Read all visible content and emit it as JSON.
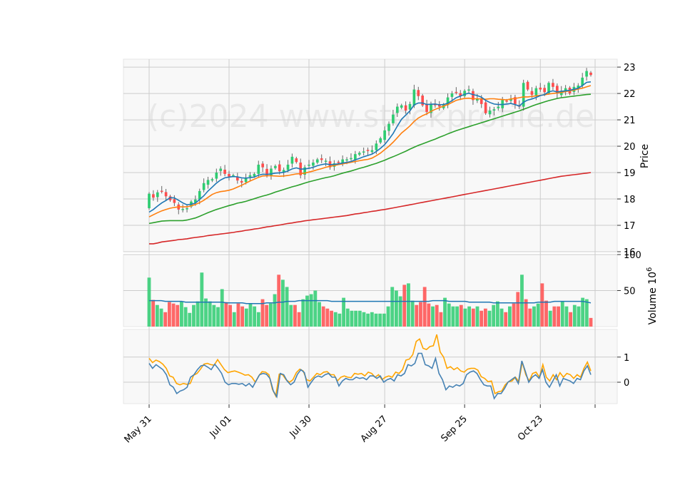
{
  "chart_data": [
    {
      "type": "candlestick",
      "panel": "price",
      "ylabel": "Price",
      "ylim": [
        16,
        23.3
      ],
      "y_ticks": [
        "16",
        "17",
        "18",
        "19",
        "20",
        "21",
        "22",
        "23"
      ],
      "x_ticks": [
        "May 31",
        "Jul 01",
        "Jul 30",
        "Aug 27",
        "Sep 25",
        "Oct 23"
      ],
      "watermark": "(c)2024 www.stockprofile.de",
      "up_color": "#2ecc71",
      "down_color": "#ff4d4d",
      "close": [
        18.2,
        18.05,
        18.25,
        18.3,
        18.1,
        17.95,
        17.85,
        17.6,
        17.62,
        17.65,
        17.9,
        17.98,
        18.3,
        18.6,
        18.72,
        18.75,
        19.0,
        19.15,
        18.95,
        18.85,
        18.9,
        18.7,
        18.62,
        18.78,
        18.9,
        18.95,
        19.3,
        19.2,
        18.9,
        19.15,
        19.25,
        19.05,
        19.1,
        19.3,
        19.6,
        19.4,
        18.9,
        19.2,
        19.3,
        19.38,
        19.5,
        19.48,
        19.45,
        19.2,
        19.35,
        19.4,
        19.5,
        19.5,
        19.55,
        19.7,
        19.75,
        19.8,
        19.82,
        19.85,
        20.1,
        20.3,
        20.6,
        20.85,
        21.2,
        21.5,
        21.55,
        21.35,
        21.6,
        22.15,
        21.9,
        21.55,
        21.3,
        21.6,
        21.55,
        21.5,
        21.58,
        21.85,
        22.0,
        22.05,
        21.9,
        22.1,
        22.15,
        21.75,
        21.8,
        21.6,
        21.25,
        21.35,
        21.4,
        21.5,
        21.75,
        21.7,
        21.8,
        21.6,
        21.5,
        22.4,
        22.15,
        21.95,
        22.2,
        22.15,
        22.05,
        22.4,
        22.25,
        22.0,
        22.1,
        22.2,
        22.0,
        22.25,
        22.3,
        22.6,
        22.85,
        22.7
      ],
      "ema_fast": [
        17.5,
        17.6,
        17.73,
        17.85,
        17.94,
        18.05,
        18.04,
        17.95,
        17.85,
        17.78,
        17.8,
        17.84,
        17.98,
        18.12,
        18.3,
        18.45,
        18.6,
        18.72,
        18.8,
        18.83,
        18.85,
        18.84,
        18.8,
        18.79,
        18.81,
        18.83,
        18.9,
        18.94,
        18.93,
        18.95,
        18.98,
        18.99,
        19.01,
        19.06,
        19.14,
        19.18,
        19.13,
        19.14,
        19.16,
        19.2,
        19.26,
        19.3,
        19.33,
        19.3,
        19.31,
        19.33,
        19.36,
        19.39,
        19.42,
        19.48,
        19.54,
        19.6,
        19.65,
        19.7,
        19.8,
        19.92,
        20.06,
        20.26,
        20.48,
        20.76,
        21.02,
        21.18,
        21.34,
        21.57,
        21.64,
        21.64,
        21.58,
        21.59,
        21.6,
        21.57,
        21.58,
        21.63,
        21.73,
        21.84,
        21.9,
        21.97,
        22.01,
        21.96,
        21.92,
        21.86,
        21.74,
        21.66,
        21.6,
        21.58,
        21.58,
        21.6,
        21.62,
        21.58,
        21.52,
        21.67,
        21.75,
        21.79,
        21.85,
        21.92,
        21.96,
        22.06,
        22.1,
        22.06,
        22.08,
        22.1,
        22.12,
        22.16,
        22.2,
        22.3,
        22.42,
        22.44
      ],
      "ema_mid": [
        17.32,
        17.4,
        17.48,
        17.55,
        17.6,
        17.65,
        17.68,
        17.7,
        17.7,
        17.7,
        17.74,
        17.79,
        17.86,
        17.95,
        18.06,
        18.17,
        18.24,
        18.28,
        18.3,
        18.33,
        18.38,
        18.45,
        18.52,
        18.6,
        18.68,
        18.75,
        18.82,
        18.87,
        18.88,
        18.88,
        18.87,
        18.86,
        18.87,
        18.89,
        18.92,
        18.95,
        18.96,
        18.98,
        19.02,
        19.06,
        19.11,
        19.15,
        19.2,
        19.24,
        19.27,
        19.3,
        19.33,
        19.36,
        19.39,
        19.42,
        19.45,
        19.48,
        19.5,
        19.55,
        19.64,
        19.74,
        19.87,
        20.0,
        20.15,
        20.32,
        20.5,
        20.63,
        20.77,
        20.94,
        21.07,
        21.16,
        21.23,
        21.32,
        21.4,
        21.46,
        21.52,
        21.58,
        21.66,
        21.74,
        21.78,
        21.81,
        21.82,
        21.8,
        21.8,
        21.79,
        21.78,
        21.8,
        21.8,
        21.78,
        21.77,
        21.76,
        21.79,
        21.81,
        21.84,
        21.87,
        21.87,
        21.89,
        21.91,
        21.93,
        21.95,
        21.98,
        22.0,
        22.02,
        22.04,
        22.07,
        22.1,
        22.13,
        22.17,
        22.2,
        22.25,
        22.3
      ],
      "ema_slow": [
        17.07,
        17.1,
        17.13,
        17.16,
        17.17,
        17.18,
        17.18,
        17.18,
        17.18,
        17.2,
        17.24,
        17.28,
        17.34,
        17.41,
        17.48,
        17.54,
        17.6,
        17.65,
        17.7,
        17.75,
        17.79,
        17.84,
        17.87,
        17.91,
        17.96,
        18.01,
        18.06,
        18.11,
        18.15,
        18.2,
        18.26,
        18.31,
        18.36,
        18.41,
        18.46,
        18.5,
        18.55,
        18.6,
        18.65,
        18.69,
        18.73,
        18.77,
        18.81,
        18.84,
        18.88,
        18.93,
        18.98,
        19.02,
        19.06,
        19.11,
        19.16,
        19.2,
        19.25,
        19.3,
        19.35,
        19.41,
        19.47,
        19.54,
        19.6,
        19.67,
        19.74,
        19.81,
        19.89,
        19.96,
        20.03,
        20.09,
        20.15,
        20.21,
        20.27,
        20.34,
        20.4,
        20.47,
        20.53,
        20.59,
        20.64,
        20.69,
        20.74,
        20.79,
        20.84,
        20.89,
        20.94,
        20.99,
        21.04,
        21.09,
        21.14,
        21.19,
        21.24,
        21.29,
        21.34,
        21.4,
        21.46,
        21.52,
        21.58,
        21.63,
        21.68,
        21.73,
        21.77,
        21.81,
        21.84,
        21.86,
        21.88,
        21.9,
        21.92,
        21.94,
        21.96,
        21.97
      ],
      "sma_long": [
        16.3,
        16.3,
        16.33,
        16.37,
        16.39,
        16.41,
        16.43,
        16.46,
        16.47,
        16.49,
        16.52,
        16.54,
        16.56,
        16.58,
        16.61,
        16.63,
        16.65,
        16.67,
        16.69,
        16.71,
        16.73,
        16.76,
        16.78,
        16.81,
        16.83,
        16.86,
        16.88,
        16.91,
        16.94,
        16.96,
        16.99,
        17.01,
        17.04,
        17.07,
        17.09,
        17.12,
        17.14,
        17.17,
        17.19,
        17.21,
        17.23,
        17.25,
        17.27,
        17.29,
        17.31,
        17.33,
        17.35,
        17.37,
        17.4,
        17.43,
        17.45,
        17.48,
        17.5,
        17.53,
        17.55,
        17.58,
        17.6,
        17.63,
        17.66,
        17.69,
        17.72,
        17.75,
        17.78,
        17.81,
        17.84,
        17.87,
        17.9,
        17.93,
        17.96,
        17.99,
        18.02,
        18.05,
        18.08,
        18.11,
        18.14,
        18.17,
        18.2,
        18.23,
        18.26,
        18.29,
        18.32,
        18.35,
        18.38,
        18.41,
        18.44,
        18.47,
        18.5,
        18.53,
        18.56,
        18.59,
        18.62,
        18.65,
        18.68,
        18.71,
        18.74,
        18.77,
        18.8,
        18.83,
        18.86,
        18.88,
        18.9,
        18.92,
        18.94,
        18.96,
        18.98,
        19.0
      ]
    },
    {
      "type": "bar",
      "panel": "volume",
      "ylabel": "Volume  10",
      "ylabel_exponent": "6",
      "ylim": [
        0,
        100
      ],
      "y_ticks": [
        "50",
        "100"
      ],
      "values": [
        68,
        37,
        30,
        25,
        20,
        34,
        32,
        30,
        35,
        27,
        19,
        30,
        35,
        75,
        39,
        35,
        30,
        27,
        52,
        34,
        30,
        20,
        32,
        28,
        25,
        32,
        28,
        20,
        38,
        30,
        32,
        45,
        72,
        65,
        55,
        30,
        30,
        20,
        38,
        43,
        45,
        50,
        34,
        28,
        25,
        22,
        20,
        18,
        40,
        25,
        22,
        22,
        22,
        20,
        18,
        20,
        18,
        18,
        18,
        28,
        55,
        50,
        42,
        58,
        60,
        36,
        30,
        34,
        55,
        32,
        28,
        30,
        20,
        40,
        32,
        28,
        28,
        30,
        25,
        28,
        25,
        28,
        22,
        25,
        22,
        30,
        35,
        25,
        20,
        28,
        32,
        48,
        72,
        38,
        25,
        28,
        32,
        60,
        36,
        22,
        28,
        28,
        35,
        28,
        20,
        30,
        28,
        40,
        38,
        12
      ],
      "avg": [
        36,
        36,
        36,
        36,
        35,
        35,
        35,
        35,
        35,
        34,
        34,
        34,
        34,
        34,
        34,
        34,
        34,
        34,
        34,
        33,
        33,
        33,
        33,
        33,
        32,
        32,
        32,
        32,
        32,
        33,
        33,
        33,
        34,
        34,
        35,
        35,
        35,
        36,
        36,
        36,
        36,
        36,
        36,
        36,
        36,
        35,
        35,
        35,
        35,
        35,
        35,
        35,
        35,
        35,
        35,
        35,
        35,
        35,
        35,
        35,
        35,
        35,
        35,
        35,
        35,
        35,
        35,
        35,
        35,
        35,
        36,
        36,
        36,
        36,
        35,
        35,
        35,
        35,
        35,
        34,
        34,
        34,
        34,
        34,
        34,
        33,
        33,
        33,
        33,
        33,
        33,
        33,
        33,
        33,
        33,
        33,
        34,
        34,
        34,
        34,
        35,
        35,
        35,
        35,
        35,
        35,
        35,
        35,
        34,
        33
      ]
    },
    {
      "type": "line",
      "panel": "oscillator",
      "ylim": [
        -0.85,
        2.1
      ],
      "y_ticks": [
        "0",
        "1"
      ],
      "series": [
        {
          "color": "#ffa500",
          "values": [
            0.95,
            0.78,
            0.88,
            0.82,
            0.72,
            0.55,
            0.25,
            0.2,
            -0.05,
            -0.1,
            -0.05,
            -0.08,
            -0.05,
            0.28,
            0.35,
            0.52,
            0.72,
            0.75,
            0.7,
            0.68,
            0.9,
            0.7,
            0.5,
            0.38,
            0.42,
            0.45,
            0.4,
            0.35,
            0.28,
            0.3,
            0.2,
            0.0,
            0.25,
            0.42,
            0.4,
            0.3,
            -0.28,
            -0.55,
            0.32,
            0.3,
            0.1,
            0.0,
            0.1,
            0.38,
            0.52,
            0.45,
            0.1,
            0.05,
            0.2,
            0.35,
            0.3,
            0.4,
            0.42,
            0.3,
            0.3,
            0.05,
            0.2,
            0.25,
            0.2,
            0.18,
            0.35,
            0.32,
            0.35,
            0.25,
            0.4,
            0.35,
            0.2,
            0.3,
            0.1,
            0.2,
            0.25,
            0.2,
            0.4,
            0.35,
            0.5,
            0.88,
            0.92,
            1.1,
            1.62,
            1.72,
            1.35,
            1.3,
            1.42,
            1.45,
            1.9,
            1.2,
            1.0,
            0.55,
            0.62,
            0.5,
            0.58,
            0.45,
            0.4,
            0.52,
            0.55,
            0.55,
            0.48,
            0.22,
            0.15,
            0.02,
            0.05,
            -0.45,
            -0.38,
            -0.35,
            -0.1,
            0.02,
            0.05,
            0.2,
            0.02,
            0.8,
            0.3,
            0.05,
            0.35,
            0.4,
            0.2,
            0.7,
            0.2,
            0.05,
            0.3,
            0.1,
            0.38,
            0.2,
            0.35,
            0.3,
            0.15,
            0.3,
            0.2,
            0.55,
            0.8,
            0.45
          ]
        },
        {
          "color": "#4682b4",
          "values": [
            0.75,
            0.55,
            0.7,
            0.6,
            0.5,
            0.3,
            -0.1,
            -0.2,
            -0.45,
            -0.35,
            -0.3,
            -0.2,
            0.2,
            0.3,
            0.5,
            0.65,
            0.68,
            0.6,
            0.5,
            0.72,
            0.55,
            0.35,
            0.0,
            -0.1,
            -0.05,
            -0.05,
            -0.08,
            -0.05,
            -0.15,
            -0.05,
            -0.2,
            0.05,
            0.3,
            0.35,
            0.32,
            0.15,
            -0.35,
            -0.58,
            0.35,
            0.3,
            0.05,
            -0.1,
            0.0,
            0.32,
            0.5,
            0.38,
            -0.2,
            0.0,
            0.18,
            0.25,
            0.2,
            0.3,
            0.35,
            0.2,
            0.2,
            -0.15,
            0.05,
            0.15,
            0.1,
            0.1,
            0.2,
            0.15,
            0.18,
            0.1,
            0.25,
            0.25,
            0.15,
            0.25,
            0.0,
            0.1,
            0.15,
            0.05,
            0.3,
            0.25,
            0.35,
            0.7,
            0.65,
            0.75,
            1.15,
            1.15,
            0.7,
            0.65,
            0.55,
            0.95,
            0.35,
            0.1,
            -0.3,
            -0.15,
            -0.2,
            -0.1,
            -0.15,
            -0.05,
            0.3,
            0.4,
            0.45,
            0.35,
            0.1,
            -0.1,
            -0.15,
            -0.15,
            -0.65,
            -0.45,
            -0.45,
            -0.25,
            0.0,
            0.1,
            0.2,
            -0.05,
            0.85,
            0.45,
            0.0,
            0.2,
            0.3,
            0.15,
            0.5,
            0.0,
            -0.2,
            0.05,
            0.3,
            -0.15,
            0.15,
            0.1,
            0.05,
            -0.05,
            0.15,
            0.1,
            0.45,
            0.65,
            0.3
          ]
        }
      ]
    }
  ]
}
